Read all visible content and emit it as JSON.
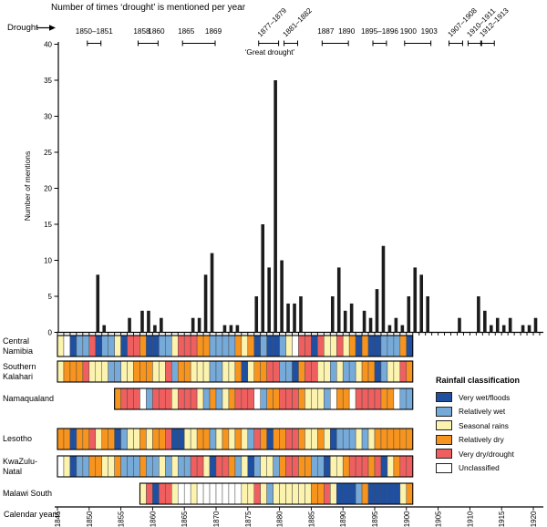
{
  "figure": {
    "title": "Number of times ‘drought’ is mentioned per year",
    "drought_row_label": "Drought",
    "great_drought_note": "‘Great drought’",
    "y_axis_label": "Number of mentions",
    "x_axis_label": "Calendar years"
  },
  "legend": {
    "title": "Rainfall classification",
    "items": [
      {
        "code": "VW",
        "label": "Very wet/floods",
        "color": "#1F4FA0"
      },
      {
        "code": "RW",
        "label": "Relatively wet",
        "color": "#76AAD8"
      },
      {
        "code": "SR",
        "label": "Seasonal rains",
        "color": "#FBF3AE"
      },
      {
        "code": "RD",
        "label": "Relatively dry",
        "color": "#F7941E"
      },
      {
        "code": "VD",
        "label": "Very dry/drought",
        "color": "#EF5F5F"
      },
      {
        "code": "UN",
        "label": "Unclassified",
        "color": "#FFFFFF"
      }
    ]
  },
  "colors": {
    "bar": "#1C1C1C",
    "axis": "#000000",
    "cell_stroke": "#4d4d4d"
  },
  "chart_data": {
    "type": "bar",
    "title": "Number of times ‘drought’ is mentioned per year",
    "xlabel": "Calendar years",
    "ylabel": "Number of mentions",
    "x_range": [
      1845,
      1921
    ],
    "ylim": [
      0,
      40
    ],
    "y_ticks": [
      0,
      5,
      10,
      15,
      20,
      25,
      30,
      35,
      40
    ],
    "x_tick_labels": [
      "1845",
      "1850",
      "1855",
      "1860",
      "1865",
      "1870",
      "1875",
      "1880",
      "1885",
      "1890",
      "1895",
      "1900",
      "1905",
      "1910",
      "1915",
      "1920"
    ],
    "mentions": [
      {
        "year": 1851,
        "value": 8
      },
      {
        "year": 1852,
        "value": 1
      },
      {
        "year": 1856,
        "value": 2
      },
      {
        "year": 1858,
        "value": 3
      },
      {
        "year": 1859,
        "value": 3
      },
      {
        "year": 1860,
        "value": 1
      },
      {
        "year": 1861,
        "value": 2
      },
      {
        "year": 1866,
        "value": 2
      },
      {
        "year": 1867,
        "value": 2
      },
      {
        "year": 1868,
        "value": 8
      },
      {
        "year": 1869,
        "value": 11
      },
      {
        "year": 1871,
        "value": 1
      },
      {
        "year": 1872,
        "value": 1
      },
      {
        "year": 1873,
        "value": 1
      },
      {
        "year": 1876,
        "value": 5
      },
      {
        "year": 1877,
        "value": 15
      },
      {
        "year": 1878,
        "value": 9
      },
      {
        "year": 1879,
        "value": 35
      },
      {
        "year": 1880,
        "value": 10
      },
      {
        "year": 1881,
        "value": 4
      },
      {
        "year": 1882,
        "value": 4
      },
      {
        "year": 1883,
        "value": 5
      },
      {
        "year": 1888,
        "value": 5
      },
      {
        "year": 1889,
        "value": 9
      },
      {
        "year": 1890,
        "value": 3
      },
      {
        "year": 1891,
        "value": 4
      },
      {
        "year": 1893,
        "value": 3
      },
      {
        "year": 1894,
        "value": 2
      },
      {
        "year": 1895,
        "value": 6
      },
      {
        "year": 1896,
        "value": 12
      },
      {
        "year": 1897,
        "value": 1
      },
      {
        "year": 1898,
        "value": 2
      },
      {
        "year": 1899,
        "value": 1
      },
      {
        "year": 1900,
        "value": 5
      },
      {
        "year": 1901,
        "value": 9
      },
      {
        "year": 1902,
        "value": 8
      },
      {
        "year": 1903,
        "value": 5
      },
      {
        "year": 1908,
        "value": 2
      },
      {
        "year": 1911,
        "value": 5
      },
      {
        "year": 1912,
        "value": 3
      },
      {
        "year": 1913,
        "value": 1
      },
      {
        "year": 1914,
        "value": 2
      },
      {
        "year": 1915,
        "value": 1
      },
      {
        "year": 1916,
        "value": 2
      },
      {
        "year": 1918,
        "value": 1
      },
      {
        "year": 1919,
        "value": 1
      },
      {
        "year": 1920,
        "value": 2
      }
    ],
    "drought_periods": [
      {
        "start": 1850,
        "end": 1851,
        "label": "1850–1851",
        "label_style": "horizontal-center"
      },
      {
        "start": 1858,
        "end": 1860,
        "end_labels": [
          "1858",
          "1860"
        ]
      },
      {
        "start": 1865,
        "end": 1869,
        "end_labels": [
          "1865",
          "1869"
        ]
      },
      {
        "start": 1877,
        "end": 1879,
        "label": "1877–1879",
        "label_style": "rotated",
        "note": "‘Great drought’"
      },
      {
        "start": 1881,
        "end": 1882,
        "label": "1881–1882",
        "label_style": "rotated"
      },
      {
        "start": 1887,
        "end": 1890,
        "end_labels": [
          "1887",
          "1890"
        ]
      },
      {
        "start": 1895,
        "end": 1896,
        "label": "1895–1896",
        "label_style": "horizontal-center"
      },
      {
        "start": 1900,
        "end": 1903,
        "end_labels": [
          "1900",
          "1903"
        ]
      },
      {
        "start": 1907,
        "end": 1908,
        "label": "1907–1908",
        "label_style": "rotated"
      },
      {
        "start": 1910,
        "end": 1911,
        "label": "1910–1911",
        "label_style": "rotated"
      },
      {
        "start": 1912,
        "end": 1913,
        "label": "1912–1913",
        "label_style": "rotated"
      }
    ],
    "strips": [
      {
        "region": "Central\nNamibia",
        "start": 1845,
        "end": 1900,
        "classes": [
          "SR",
          "UN",
          "VW",
          "RW",
          "RW",
          "VD",
          "VW",
          "RW",
          "RW",
          "SR",
          "VW",
          "VD",
          "VD",
          "RD",
          "VW",
          "VW",
          "RW",
          "RW",
          "SR",
          "VD",
          "VD",
          "VD",
          "RD",
          "RD",
          "RW",
          "RW",
          "RW",
          "RW",
          "RD",
          "SR",
          "RD",
          "VW",
          "RW",
          "VW",
          "VW",
          "RW",
          "SR",
          "UN",
          "VD",
          "VD",
          "VW",
          "VD",
          "SR",
          "SR",
          "VD",
          "SR",
          "RD",
          "VW",
          "RD",
          "VW",
          "VW",
          "RW",
          "RW",
          "RW",
          "RD",
          "VW"
        ]
      },
      {
        "region": "Southern\nKalahari",
        "start": 1845,
        "end": 1900,
        "classes": [
          "SR",
          "RD",
          "RD",
          "RD",
          "VD",
          "SR",
          "SR",
          "SR",
          "RW",
          "RW",
          "SR",
          "SR",
          "RD",
          "RD",
          "RD",
          "SR",
          "SR",
          "VD",
          "RW",
          "RD",
          "RD",
          "SR",
          "SR",
          "SR",
          "RW",
          "RW",
          "SR",
          "SR",
          "RD",
          "VW",
          "SR",
          "RD",
          "RD",
          "VD",
          "VD",
          "RW",
          "RW",
          "VW",
          "RD",
          "VD",
          "VD",
          "SR",
          "SR",
          "RW",
          "SR",
          "RW",
          "RW",
          "SR",
          "RD",
          "RD",
          "VW",
          "RW",
          "SR",
          "SR",
          "VD",
          "RD"
        ]
      },
      {
        "region": "Namaqualand",
        "start": 1854,
        "end": 1900,
        "classes": [
          "RD",
          "VD",
          "VD",
          "VD",
          "UN",
          "RW",
          "VD",
          "VD",
          "VD",
          "SR",
          "VD",
          "VD",
          "VD",
          "SR",
          "RW",
          "RD",
          "RW",
          "SR",
          "RD",
          "VD",
          "VD",
          "VD",
          "UN",
          "RW",
          "RD",
          "RD",
          "VD",
          "VD",
          "VD",
          "RD",
          "SR",
          "SR",
          "SR",
          "RW",
          "UN",
          "RD",
          "RD",
          "UN",
          "VD",
          "VD",
          "VD",
          "VD",
          "RD",
          "RD",
          "UN",
          "RW",
          "RW"
        ]
      },
      {
        "region": "Lesotho",
        "start": 1845,
        "end": 1900,
        "classes": [
          "RD",
          "RD",
          "VW",
          "RD",
          "RD",
          "VD",
          "SR",
          "RD",
          "RD",
          "VW",
          "RW",
          "SR",
          "SR",
          "RD",
          "SR",
          "RD",
          "RD",
          "VD",
          "VW",
          "VW",
          "SR",
          "SR",
          "RD",
          "RD",
          "RW",
          "SR",
          "RD",
          "SR",
          "RD",
          "SR",
          "RW",
          "VD",
          "RD",
          "VW",
          "RD",
          "RD",
          "VD",
          "VD",
          "RD",
          "SR",
          "SR",
          "RD",
          "SR",
          "VW",
          "RW",
          "RW",
          "RW",
          "SR",
          "RW",
          "SR",
          "RD",
          "RD",
          "RD",
          "RD",
          "RD",
          "RD"
        ]
      },
      {
        "region": "KwaZulu-Natal",
        "start": 1845,
        "end": 1900,
        "classes": [
          "UN",
          "SR",
          "VW",
          "RW",
          "RW",
          "RD",
          "RD",
          "SR",
          "SR",
          "RD",
          "RW",
          "RW",
          "RW",
          "RD",
          "RW",
          "RW",
          "SR",
          "RW",
          "SR",
          "RW",
          "RW",
          "VD",
          "VD",
          "SR",
          "VW",
          "VD",
          "VD",
          "RD",
          "RW",
          "SR",
          "VW",
          "RW",
          "SR",
          "SR",
          "RW",
          "RD",
          "VD",
          "VD",
          "RD",
          "RD",
          "RW",
          "RW",
          "VW",
          "SR",
          "SR",
          "RD",
          "VD",
          "VD",
          "VD",
          "RD",
          "VD",
          "VW",
          "SR",
          "RD",
          "VD",
          "VD"
        ]
      },
      {
        "region": "Malawi South",
        "start": 1858,
        "end": 1900,
        "classes": [
          "SR",
          "VD",
          "VW",
          "VD",
          "VD",
          "SR",
          "UN",
          "UN",
          "SR",
          "UN",
          "UN",
          "UN",
          "UN",
          "UN",
          "UN",
          "UN",
          "SR",
          "SR",
          "VD",
          "SR",
          "RW",
          "SR",
          "SR",
          "SR",
          "SR",
          "SR",
          "SR",
          "RD",
          "RD",
          "VD",
          "SR",
          "VW",
          "VW",
          "VW",
          "RW",
          "RD",
          "VW",
          "VW",
          "VW",
          "VW",
          "VW",
          "SR",
          "RD"
        ]
      }
    ]
  }
}
